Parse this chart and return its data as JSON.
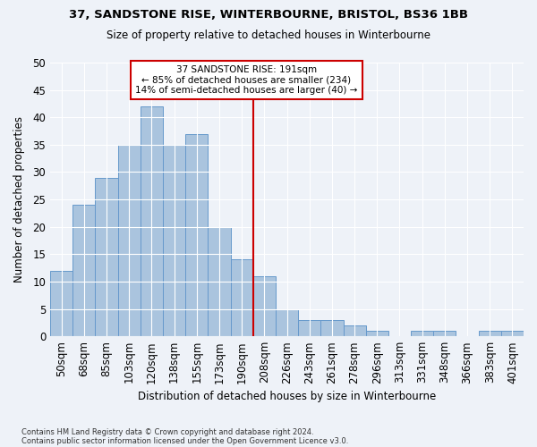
{
  "title1": "37, SANDSTONE RISE, WINTERBOURNE, BRISTOL, BS36 1BB",
  "title2": "Size of property relative to detached houses in Winterbourne",
  "xlabel": "Distribution of detached houses by size in Winterbourne",
  "ylabel": "Number of detached properties",
  "footnote1": "Contains HM Land Registry data © Crown copyright and database right 2024.",
  "footnote2": "Contains public sector information licensed under the Open Government Licence v3.0.",
  "categories": [
    "50sqm",
    "68sqm",
    "85sqm",
    "103sqm",
    "120sqm",
    "138sqm",
    "155sqm",
    "173sqm",
    "190sqm",
    "208sqm",
    "226sqm",
    "243sqm",
    "261sqm",
    "278sqm",
    "296sqm",
    "313sqm",
    "331sqm",
    "348sqm",
    "366sqm",
    "383sqm",
    "401sqm"
  ],
  "values": [
    12,
    24,
    29,
    35,
    42,
    35,
    37,
    20,
    14,
    11,
    5,
    3,
    3,
    2,
    1,
    0,
    1,
    1,
    0,
    1,
    1
  ],
  "bar_color": "#aac4de",
  "bar_edge_color": "#6699cc",
  "background_color": "#eef2f8",
  "grid_color": "#ffffff",
  "vline_color": "#cc0000",
  "annotation_text": "37 SANDSTONE RISE: 191sqm\n← 85% of detached houses are smaller (234)\n14% of semi-detached houses are larger (40) →",
  "annotation_box_color": "#cc0000",
  "ylim": [
    0,
    50
  ],
  "yticks": [
    0,
    5,
    10,
    15,
    20,
    25,
    30,
    35,
    40,
    45,
    50
  ]
}
